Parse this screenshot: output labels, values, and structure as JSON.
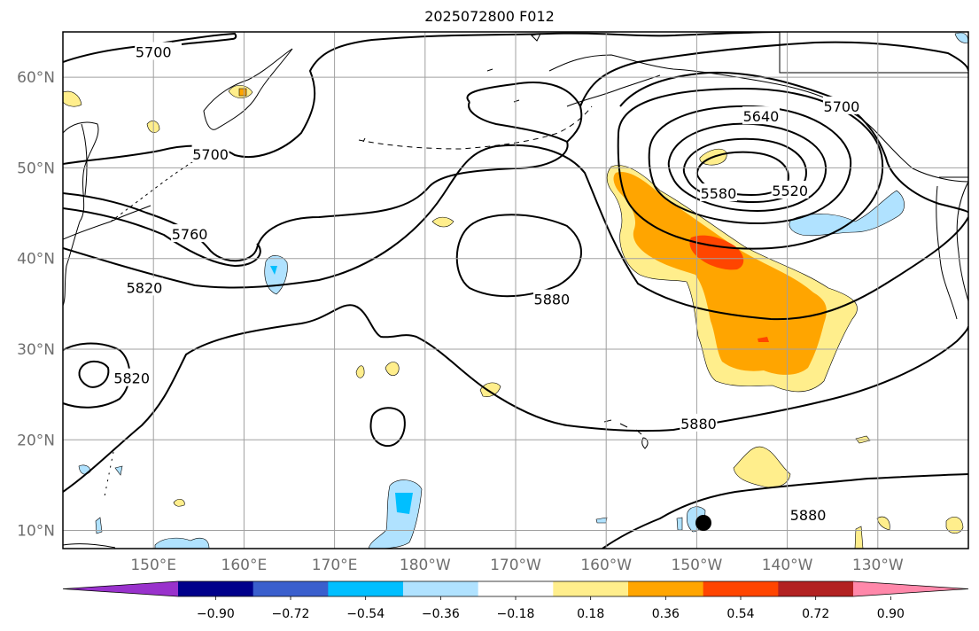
{
  "title": "2025072800 F012",
  "lat_ticks": [
    {
      "label": "60°N",
      "lat": 60
    },
    {
      "label": "50°N",
      "lat": 50
    },
    {
      "label": "40°N",
      "lat": 40
    },
    {
      "label": "30°N",
      "lat": 30
    },
    {
      "label": "20°N",
      "lat": 20
    },
    {
      "label": "10°N",
      "lat": 10
    }
  ],
  "lon_ticks": [
    {
      "label": "150°E",
      "lon": 150
    },
    {
      "label": "160°E",
      "lon": 160
    },
    {
      "label": "170°E",
      "lon": 170
    },
    {
      "label": "180°W",
      "lon": 180
    },
    {
      "label": "170°W",
      "lon": 190
    },
    {
      "label": "160°W",
      "lon": 200
    },
    {
      "label": "150°W",
      "lon": 210
    },
    {
      "label": "140°W",
      "lon": 220
    },
    {
      "label": "130°W",
      "lon": 230
    }
  ],
  "extent": {
    "lon_min": 140,
    "lon_max": 240,
    "lat_min": 8,
    "lat_max": 65
  },
  "contour_labels": [
    {
      "text": "5700",
      "lon": 150,
      "lat": 62.8
    },
    {
      "text": "5700",
      "lon": 156.3,
      "lat": 51.5
    },
    {
      "text": "5760",
      "lon": 154,
      "lat": 42.7
    },
    {
      "text": "5820",
      "lon": 149,
      "lat": 36.8
    },
    {
      "text": "5820",
      "lon": 147.6,
      "lat": 26.8
    },
    {
      "text": "5880",
      "lon": 194,
      "lat": 35.5
    },
    {
      "text": "5880",
      "lon": 210.2,
      "lat": 21.8
    },
    {
      "text": "5880",
      "lon": 222.3,
      "lat": 11.7
    },
    {
      "text": "5640",
      "lon": 217.1,
      "lat": 55.7
    },
    {
      "text": "5700",
      "lon": 226,
      "lat": 56.8
    },
    {
      "text": "5580",
      "lon": 212.4,
      "lat": 47.2
    },
    {
      "text": "5520",
      "lon": 220.3,
      "lat": 47.5
    }
  ],
  "colorbar": {
    "levels": [
      "−0.90",
      "−0.72",
      "−0.54",
      "−0.36",
      "−0.18",
      "0.18",
      "0.36",
      "0.54",
      "0.72",
      "0.90"
    ],
    "colors": [
      "#9932cc",
      "#00008b",
      "#3a5fcd",
      "#00bfff",
      "#b0e2ff",
      "#ffffff",
      "#ffee8c",
      "#ffa500",
      "#ff4500",
      "#b22222",
      "#ff88aa"
    ]
  },
  "colors": {
    "grid": "#a0a0a0",
    "contour": "#000000",
    "coast": "#000000"
  }
}
